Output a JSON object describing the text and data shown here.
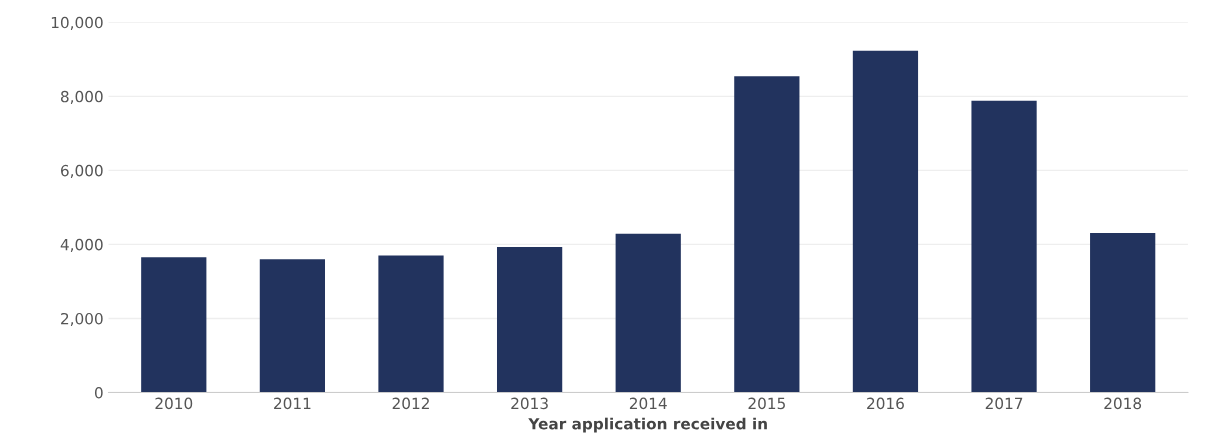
{
  "chart_data": {
    "type": "bar",
    "xlabel": "Year application received in",
    "categories": [
      "2010",
      "2011",
      "2012",
      "2013",
      "2014",
      "2015",
      "2016",
      "2017",
      "2018"
    ],
    "values": [
      3650,
      3600,
      3700,
      3930,
      4290,
      8540,
      9230,
      7880,
      4310
    ],
    "color": "#22335e",
    "ylim": [
      0,
      10000
    ],
    "yticks": [
      {
        "value": 0,
        "label": "0"
      },
      {
        "value": 2000,
        "label": "2,000"
      },
      {
        "value": 4000,
        "label": "4,000"
      },
      {
        "value": 6000,
        "label": "6,000"
      },
      {
        "value": 8000,
        "label": "8,000"
      },
      {
        "value": 10000,
        "label": "10,000"
      }
    ],
    "grid": "y"
  }
}
